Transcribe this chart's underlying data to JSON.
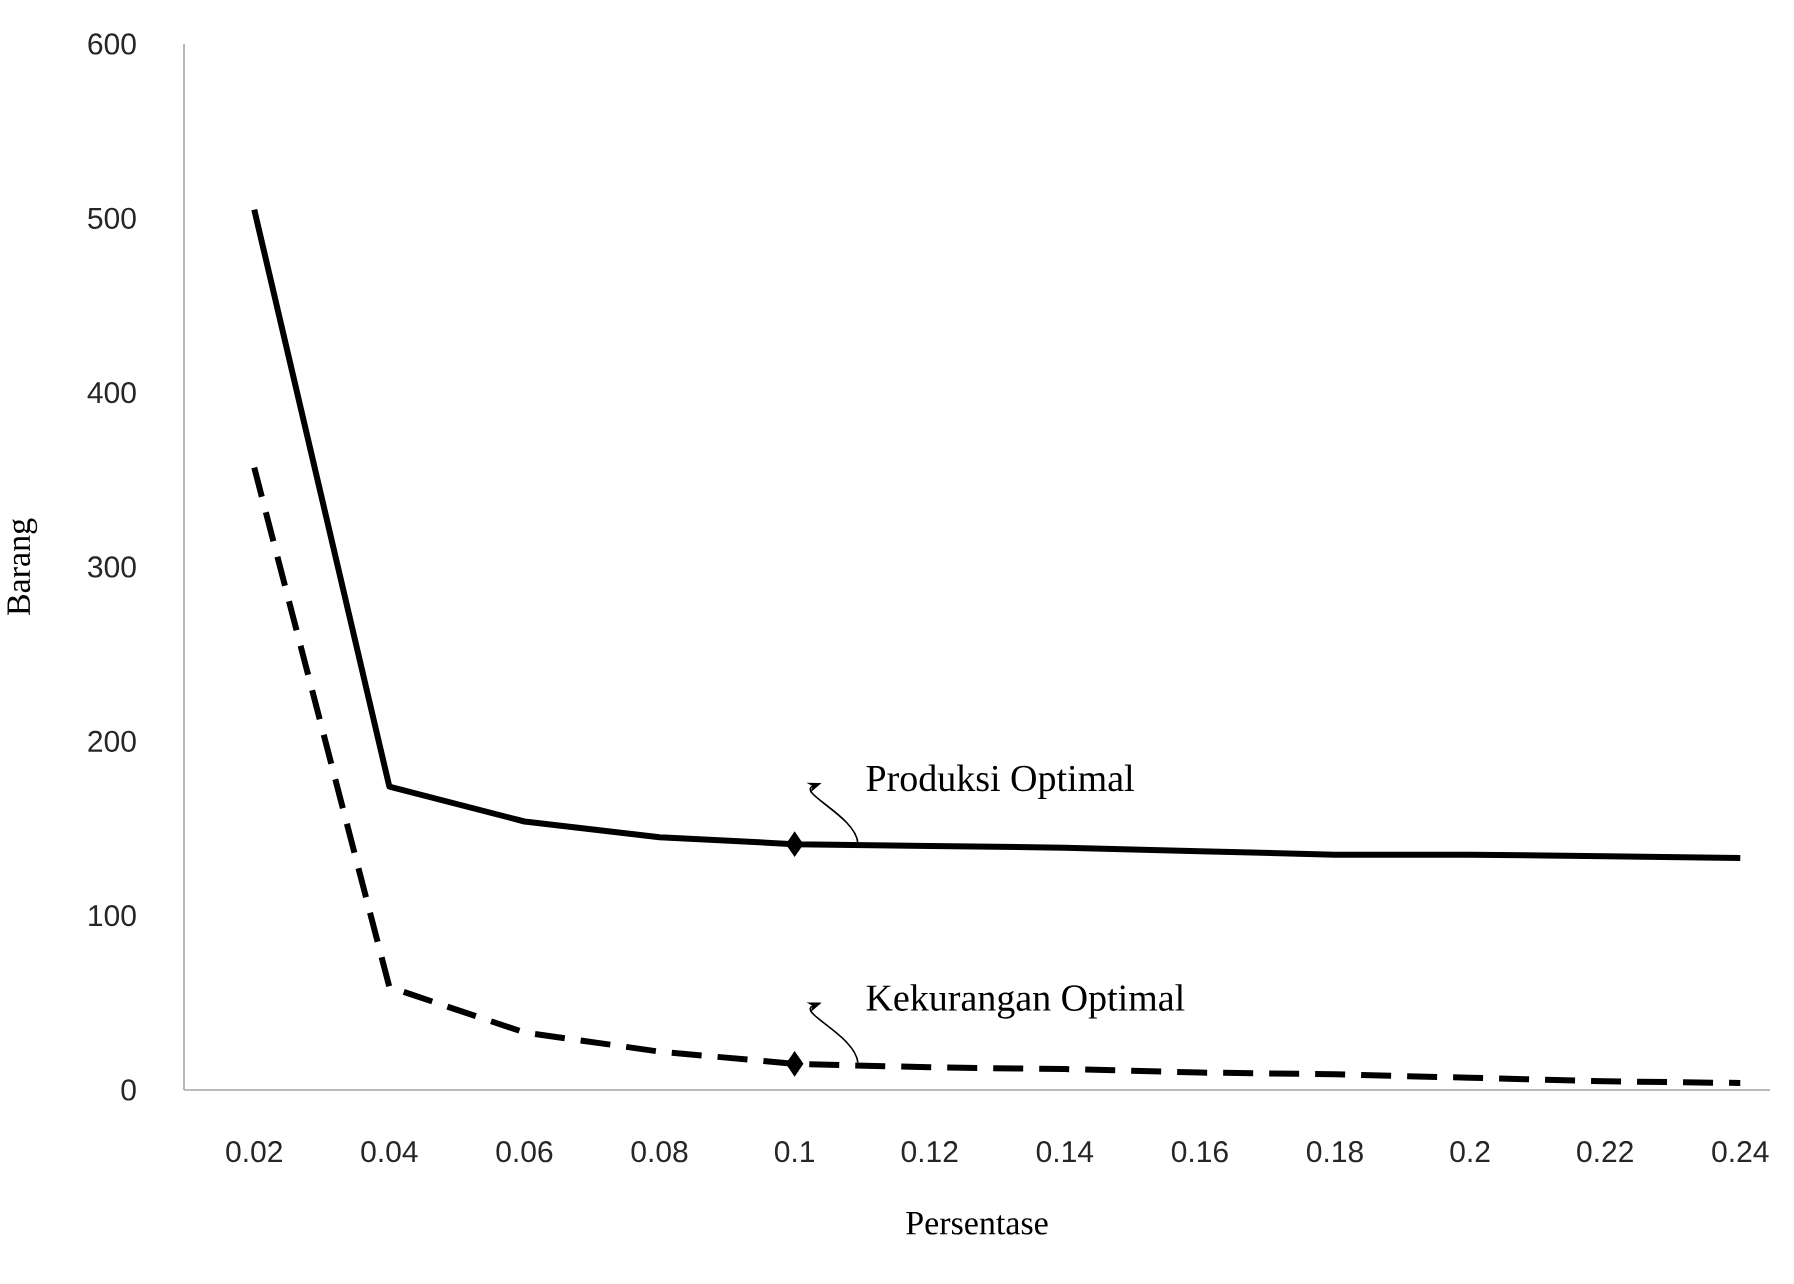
{
  "chart_data": {
    "type": "line",
    "xlabel": "Persentase",
    "ylabel": "Barang",
    "categories": [
      "0.02",
      "0.04",
      "0.06",
      "0.08",
      "0.1",
      "0.12",
      "0.14",
      "0.16",
      "0.18",
      "0.2",
      "0.22",
      "0.24"
    ],
    "series": [
      {
        "color": "#000000",
        "line_style": "solid",
        "values": [
          505,
          174,
          154,
          145,
          141,
          140,
          139,
          137,
          135,
          135,
          134,
          133
        ]
      },
      {
        "color": "#000000",
        "line_style": "dashed",
        "values": [
          357,
          59,
          33,
          22,
          15,
          13,
          12,
          10,
          9,
          7,
          5,
          4
        ]
      }
    ],
    "ylim": [
      0,
      600
    ],
    "yticks": [
      0,
      100,
      200,
      300,
      400,
      500,
      600
    ],
    "annotations": [
      {
        "text": "Produksi Optimal",
        "x": "0.1",
        "y": 141
      },
      {
        "text": "Kekurangan Optimal",
        "x": "0.1",
        "y": 15
      }
    ]
  }
}
